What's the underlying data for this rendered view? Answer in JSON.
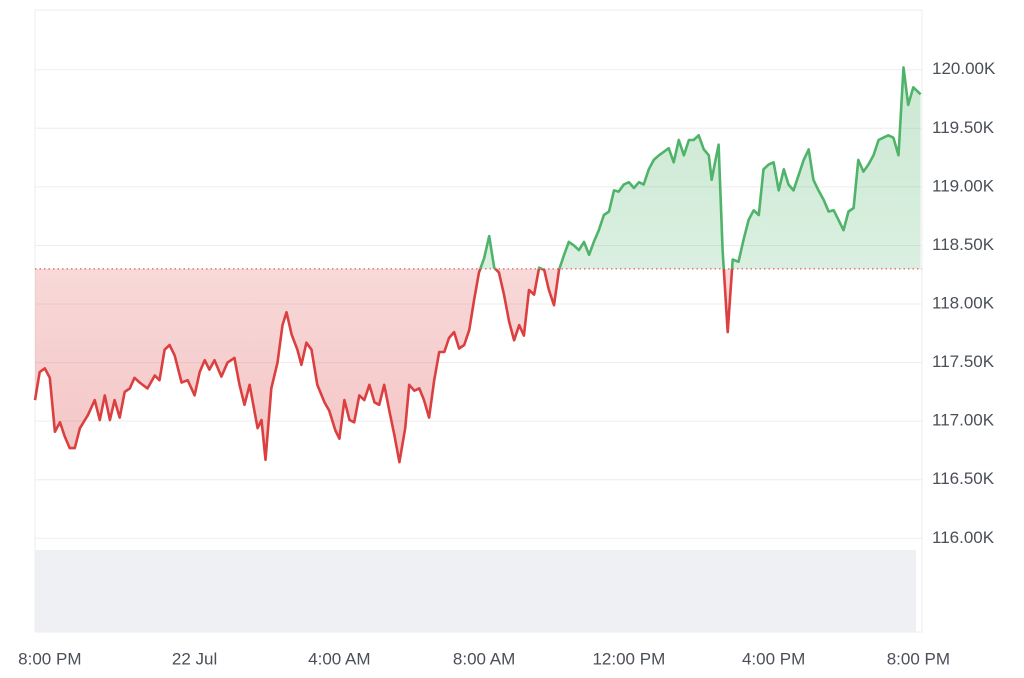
{
  "chart_data": {
    "type": "line",
    "x": [
      -0.41,
      -0.28,
      -0.14,
      0,
      0.14,
      0.28,
      0.41,
      0.55,
      0.69,
      0.83,
      1.05,
      1.24,
      1.38,
      1.52,
      1.66,
      1.79,
      1.93,
      2.07,
      2.21,
      2.34,
      2.48,
      2.7,
      2.9,
      3.03,
      3.17,
      3.31,
      3.45,
      3.64,
      3.81,
      4.0,
      4.14,
      4.28,
      4.41,
      4.55,
      4.74,
      4.91,
      5.1,
      5.24,
      5.38,
      5.52,
      5.74,
      5.85,
      5.96,
      6.12,
      6.29,
      6.43,
      6.54,
      6.68,
      6.84,
      6.95,
      7.09,
      7.23,
      7.39,
      7.59,
      7.72,
      7.89,
      8.0,
      8.14,
      8.28,
      8.41,
      8.55,
      8.69,
      8.83,
      8.97,
      9.1,
      9.24,
      9.38,
      9.52,
      9.66,
      9.82,
      9.93,
      10.07,
      10.21,
      10.34,
      10.48,
      10.62,
      10.76,
      10.9,
      11.03,
      11.17,
      11.31,
      11.45,
      11.59,
      11.72,
      11.86,
      12.0,
      12.14,
      12.28,
      12.41,
      12.55,
      12.69,
      12.83,
      12.97,
      13.1,
      13.24,
      13.38,
      13.52,
      13.66,
      13.79,
      13.93,
      14.07,
      14.21,
      14.34,
      14.48,
      14.62,
      14.76,
      14.9,
      15.03,
      15.17,
      15.31,
      15.45,
      15.59,
      15.72,
      15.86,
      16.0,
      16.14,
      16.28,
      16.41,
      16.55,
      16.69,
      16.83,
      16.97,
      17.1,
      17.24,
      17.38,
      17.52,
      17.66,
      17.79,
      17.93,
      18.07,
      18.21,
      18.29,
      18.37,
      18.48,
      18.59,
      18.73,
      18.87,
      19.03,
      19.17,
      19.31,
      19.45,
      19.59,
      19.72,
      19.86,
      20.0,
      20.14,
      20.28,
      20.41,
      20.55,
      20.69,
      20.83,
      20.97,
      21.1,
      21.24,
      21.38,
      21.52,
      21.66,
      21.79,
      21.93,
      22.07,
      22.21,
      22.34,
      22.48,
      22.62,
      22.76,
      22.9,
      23.03,
      23.17,
      23.31,
      23.45,
      23.59,
      23.72,
      23.86,
      24.06
    ],
    "values": [
      117180,
      117420,
      117450,
      117370,
      116910,
      116990,
      116870,
      116770,
      116770,
      116940,
      117050,
      117180,
      117010,
      117220,
      117010,
      117180,
      117030,
      117250,
      117280,
      117370,
      117330,
      117280,
      117390,
      117350,
      117610,
      117650,
      117560,
      117330,
      117350,
      117220,
      117420,
      117520,
      117440,
      117520,
      117380,
      117500,
      117540,
      117310,
      117140,
      117310,
      116940,
      117010,
      116670,
      117280,
      117500,
      117820,
      117930,
      117740,
      117610,
      117480,
      117670,
      117610,
      117310,
      117160,
      117090,
      116920,
      116850,
      117180,
      117010,
      116990,
      117220,
      117180,
      117310,
      117160,
      117140,
      117310,
      117090,
      116880,
      116650,
      116940,
      117310,
      117260,
      117280,
      117180,
      117030,
      117350,
      117590,
      117590,
      117710,
      117760,
      117620,
      117650,
      117780,
      118030,
      118270,
      118390,
      118580,
      118310,
      118270,
      118080,
      117850,
      117690,
      117820,
      117730,
      118120,
      118080,
      118310,
      118290,
      118120,
      117990,
      118290,
      118420,
      118530,
      118500,
      118460,
      118530,
      118420,
      118530,
      118630,
      118760,
      118790,
      118970,
      118960,
      119020,
      119040,
      118990,
      119040,
      119020,
      119150,
      119230,
      119270,
      119300,
      119330,
      119210,
      119400,
      119270,
      119400,
      119400,
      119440,
      119320,
      119270,
      119060,
      119190,
      119360,
      118460,
      117760,
      118380,
      118360,
      118550,
      118720,
      118800,
      118760,
      119150,
      119190,
      119210,
      118970,
      119150,
      119020,
      118970,
      119100,
      119230,
      119320,
      119060,
      118970,
      118890,
      118790,
      118800,
      118720,
      118630,
      118790,
      118820,
      119230,
      119130,
      119190,
      119270,
      119400,
      119420,
      119440,
      119420,
      119270,
      120020,
      119700,
      119850,
      119790
    ],
    "baseline": 118300,
    "up_color": "#4fb36a",
    "down_color": "#db3f3f",
    "xlim": [
      -0.41,
      24.1
    ],
    "xticks": [
      {
        "value": 0,
        "label": "8:00 PM"
      },
      {
        "value": 4,
        "label": "22 Jul"
      },
      {
        "value": 8,
        "label": "4:00 AM"
      },
      {
        "value": 12,
        "label": "8:00 AM"
      },
      {
        "value": 16,
        "label": "12:00 PM"
      },
      {
        "value": 20,
        "label": "4:00 PM"
      },
      {
        "value": 24,
        "label": "8:00 PM"
      }
    ],
    "ylim": [
      115200,
      120510
    ],
    "yticks": [
      {
        "value": 116000,
        "label": "116.00K"
      },
      {
        "value": 116500,
        "label": "116.50K"
      },
      {
        "value": 117000,
        "label": "117.00K"
      },
      {
        "value": 117500,
        "label": "117.50K"
      },
      {
        "value": 118000,
        "label": "118.00K"
      },
      {
        "value": 118500,
        "label": "118.50K"
      },
      {
        "value": 119000,
        "label": "119.00K"
      },
      {
        "value": 119500,
        "label": "119.50K"
      },
      {
        "value": 120000,
        "label": "120.00K"
      }
    ],
    "grid": true
  }
}
